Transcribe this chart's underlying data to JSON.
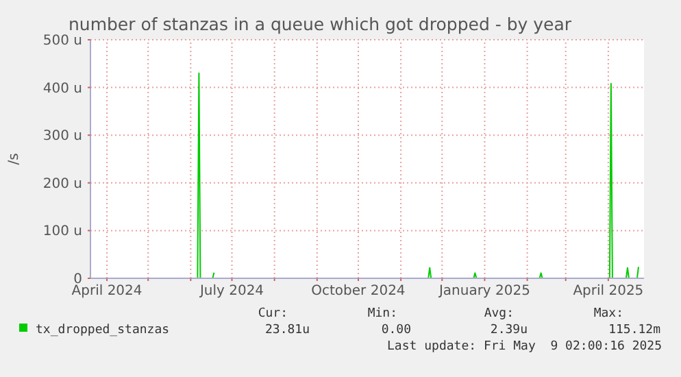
{
  "chart_data": {
    "type": "line",
    "title": "number of stanzas in a queue which got dropped - by year",
    "ylabel": "/s",
    "x": [
      "2024-03-20",
      "2024-06-06",
      "2024-06-07",
      "2024-06-08",
      "2024-06-17",
      "2024-06-18",
      "2024-06-19",
      "2024-06-26",
      "2024-11-21",
      "2024-11-22",
      "2024-11-23",
      "2024-12-24",
      "2024-12-25",
      "2024-12-26",
      "2025-02-10",
      "2025-02-11",
      "2025-02-12",
      "2025-04-02",
      "2025-04-03",
      "2025-04-04",
      "2025-04-14",
      "2025-04-15",
      "2025-04-16",
      "2025-04-22",
      "2025-04-23"
    ],
    "series": [
      {
        "name": "tx_dropped_stanzas",
        "color": "#00cc00",
        "values": [
          0,
          0,
          430,
          0,
          0,
          12,
          null,
          0,
          0,
          22,
          0,
          0,
          11,
          0,
          0,
          11,
          0,
          0,
          408,
          0,
          0,
          22,
          0,
          0,
          24
        ]
      }
    ],
    "xlim": [
      "2024-03-20",
      "2025-04-27"
    ],
    "xticks": [
      {
        "value": "2024-04-01",
        "label": "April 2024"
      },
      {
        "value": "2024-05-01",
        "label": null
      },
      {
        "value": "2024-06-01",
        "label": null
      },
      {
        "value": "2024-07-01",
        "label": "July 2024"
      },
      {
        "value": "2024-08-01",
        "label": null
      },
      {
        "value": "2024-09-01",
        "label": null
      },
      {
        "value": "2024-10-01",
        "label": "October 2024"
      },
      {
        "value": "2024-11-01",
        "label": null
      },
      {
        "value": "2024-12-01",
        "label": null
      },
      {
        "value": "2025-01-01",
        "label": "January 2025"
      },
      {
        "value": "2025-02-01",
        "label": null
      },
      {
        "value": "2025-03-01",
        "label": null
      },
      {
        "value": "2025-04-01",
        "label": "April 2025"
      }
    ],
    "ylim": [
      0,
      500
    ],
    "yticks": [
      0,
      {
        "value": 100,
        "label": "100 u"
      },
      {
        "value": 200,
        "label": "200 u"
      },
      {
        "value": 300,
        "label": "300 u"
      },
      {
        "value": 400,
        "label": "400 u"
      },
      {
        "value": 500,
        "label": "500 u"
      }
    ],
    "grid": true,
    "legend": "bottom",
    "marker": "none",
    "line_style": "solid",
    "annotations": [
      "Cur:",
      "Min:",
      "Avg:",
      "Max:",
      "23.81u",
      "0.00",
      "2.39u",
      "115.12m",
      "Last update: Fri May  9 02:00:16 2025"
    ]
  }
}
